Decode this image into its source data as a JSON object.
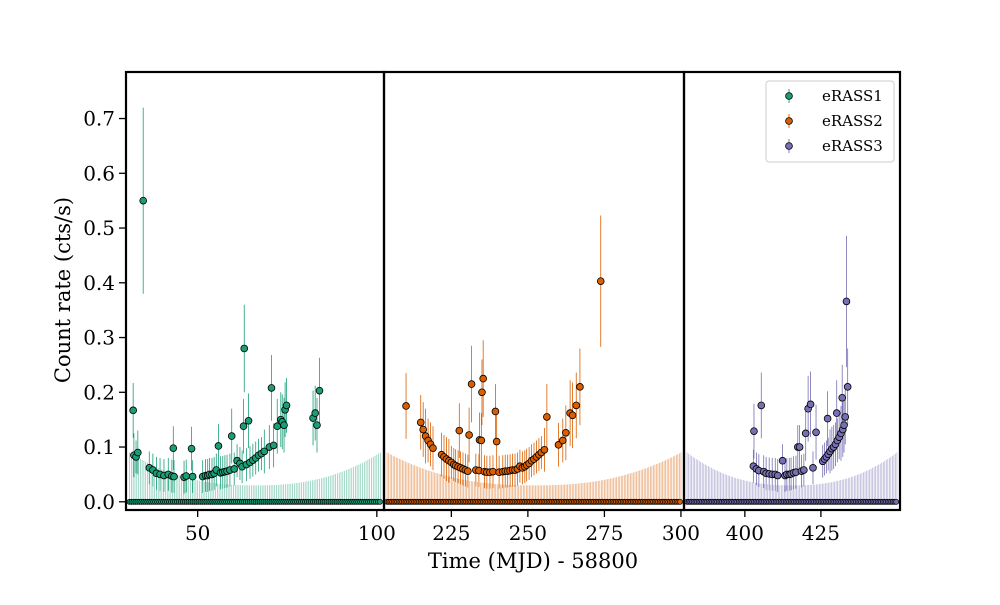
{
  "chart_data": {
    "type": "scatter",
    "title": "",
    "xlabel": "Time (MJD) - 58800",
    "ylabel": "Count rate (cts/s)",
    "ylim": [
      -0.015,
      0.785
    ],
    "yticks": [
      0.0,
      0.1,
      0.2,
      0.3,
      0.4,
      0.5,
      0.6,
      0.7
    ],
    "ytick_labels": [
      "0.0",
      "0.1",
      "0.2",
      "0.3",
      "0.4",
      "0.5",
      "0.6",
      "0.7"
    ],
    "legend_position": "top-right",
    "panels": [
      {
        "name": "eRASS1",
        "xlim": [
          30,
          102
        ],
        "xticks": [
          50,
          100
        ],
        "xtick_labels": [
          "50",
          "100"
        ],
        "t_start": 31,
        "t_end": 101
      },
      {
        "name": "eRASS2",
        "xlim": [
          203,
          301
        ],
        "xticks": [
          225,
          250,
          275,
          300
        ],
        "xtick_labels": [
          "225",
          "250",
          "275",
          "300"
        ],
        "t_start": 204,
        "t_end": 300
      },
      {
        "name": "eRASS3",
        "xlim": [
          380,
          451
        ],
        "xticks": [
          400,
          425
        ],
        "xtick_labels": [
          "400",
          "425"
        ],
        "t_start": 381,
        "t_end": 450
      }
    ],
    "series": [
      {
        "name": "eRASS1",
        "color": "#1b9e77",
        "points": [
          [
            32.0,
            0.167,
            0.05
          ],
          [
            32.2,
            0.085,
            0.04
          ],
          [
            32.8,
            0.082,
            0.03
          ],
          [
            33.3,
            0.09,
            0.04
          ],
          [
            34.8,
            0.55,
            0.17
          ],
          [
            36.5,
            0.062,
            0.03
          ],
          [
            37.5,
            0.058,
            0.03
          ],
          [
            38.5,
            0.052,
            0.03
          ],
          [
            39.5,
            0.05,
            0.03
          ],
          [
            40.6,
            0.048,
            0.03
          ],
          [
            41.8,
            0.05,
            0.03
          ],
          [
            42.8,
            0.047,
            0.03
          ],
          [
            43.4,
            0.046,
            0.03
          ],
          [
            43.2,
            0.098,
            0.04
          ],
          [
            46.2,
            0.045,
            0.03
          ],
          [
            46.8,
            0.047,
            0.03
          ],
          [
            48.3,
            0.097,
            0.04
          ],
          [
            48.6,
            0.046,
            0.03
          ],
          [
            51.4,
            0.046,
            0.03
          ],
          [
            52.2,
            0.048,
            0.03
          ],
          [
            52.8,
            0.048,
            0.03
          ],
          [
            53.3,
            0.05,
            0.03
          ],
          [
            54.0,
            0.05,
            0.03
          ],
          [
            54.6,
            0.052,
            0.03
          ],
          [
            55.2,
            0.058,
            0.03
          ],
          [
            55.8,
            0.102,
            0.04
          ],
          [
            56.4,
            0.053,
            0.03
          ],
          [
            57.0,
            0.054,
            0.03
          ],
          [
            57.6,
            0.055,
            0.03
          ],
          [
            58.2,
            0.056,
            0.03
          ],
          [
            59.0,
            0.058,
            0.03
          ],
          [
            59.5,
            0.12,
            0.05
          ],
          [
            60.2,
            0.06,
            0.03
          ],
          [
            61.0,
            0.075,
            0.03
          ],
          [
            61.8,
            0.07,
            0.03
          ],
          [
            62.4,
            0.064,
            0.03
          ],
          [
            62.8,
            0.138,
            0.05
          ],
          [
            63.0,
            0.28,
            0.08
          ],
          [
            63.6,
            0.068,
            0.03
          ],
          [
            64.2,
            0.148,
            0.05
          ],
          [
            64.6,
            0.072,
            0.03
          ],
          [
            65.4,
            0.076,
            0.03
          ],
          [
            66.2,
            0.08,
            0.03
          ],
          [
            67.0,
            0.085,
            0.03
          ],
          [
            67.8,
            0.088,
            0.03
          ],
          [
            68.6,
            0.092,
            0.04
          ],
          [
            70.0,
            0.1,
            0.04
          ],
          [
            70.6,
            0.208,
            0.06
          ],
          [
            71.2,
            0.103,
            0.04
          ],
          [
            72.2,
            0.138,
            0.05
          ],
          [
            73.2,
            0.15,
            0.05
          ],
          [
            73.6,
            0.146,
            0.05
          ],
          [
            74.4,
            0.168,
            0.05
          ],
          [
            74.8,
            0.176,
            0.05
          ],
          [
            74.1,
            0.14,
            0.05
          ],
          [
            82.2,
            0.153,
            0.05
          ],
          [
            82.8,
            0.162,
            0.05
          ],
          [
            83.3,
            0.14,
            0.05
          ],
          [
            84.0,
            0.203,
            0.06
          ]
        ]
      },
      {
        "name": "eRASS2",
        "color": "#d95f02",
        "points": [
          [
            210.2,
            0.175,
            0.06
          ],
          [
            215.0,
            0.145,
            0.05
          ],
          [
            215.8,
            0.132,
            0.05
          ],
          [
            216.6,
            0.12,
            0.05
          ],
          [
            217.4,
            0.112,
            0.04
          ],
          [
            218.2,
            0.105,
            0.04
          ],
          [
            219.0,
            0.098,
            0.04
          ],
          [
            221.8,
            0.086,
            0.04
          ],
          [
            222.6,
            0.082,
            0.04
          ],
          [
            223.4,
            0.078,
            0.04
          ],
          [
            224.2,
            0.075,
            0.04
          ],
          [
            225.0,
            0.072,
            0.03
          ],
          [
            225.8,
            0.068,
            0.03
          ],
          [
            226.4,
            0.066,
            0.03
          ],
          [
            227.2,
            0.064,
            0.03
          ],
          [
            227.6,
            0.13,
            0.05
          ],
          [
            228.0,
            0.062,
            0.03
          ],
          [
            228.8,
            0.06,
            0.03
          ],
          [
            229.6,
            0.058,
            0.03
          ],
          [
            230.4,
            0.056,
            0.03
          ],
          [
            230.8,
            0.122,
            0.05
          ],
          [
            231.6,
            0.215,
            0.07
          ],
          [
            233.0,
            0.058,
            0.03
          ],
          [
            234.0,
            0.057,
            0.03
          ],
          [
            234.2,
            0.113,
            0.05
          ],
          [
            234.8,
            0.112,
            0.05
          ],
          [
            235.0,
            0.2,
            0.06
          ],
          [
            235.4,
            0.225,
            0.07
          ],
          [
            235.8,
            0.055,
            0.03
          ],
          [
            236.6,
            0.054,
            0.03
          ],
          [
            237.6,
            0.054,
            0.03
          ],
          [
            238.6,
            0.055,
            0.03
          ],
          [
            239.4,
            0.165,
            0.05
          ],
          [
            239.8,
            0.11,
            0.05
          ],
          [
            240.6,
            0.054,
            0.03
          ],
          [
            241.8,
            0.055,
            0.03
          ],
          [
            242.6,
            0.056,
            0.03
          ],
          [
            243.4,
            0.056,
            0.03
          ],
          [
            244.2,
            0.057,
            0.03
          ],
          [
            245.0,
            0.058,
            0.03
          ],
          [
            245.8,
            0.058,
            0.03
          ],
          [
            246.6,
            0.06,
            0.03
          ],
          [
            247.4,
            0.065,
            0.03
          ],
          [
            248.2,
            0.062,
            0.03
          ],
          [
            249.0,
            0.064,
            0.03
          ],
          [
            249.6,
            0.067,
            0.03
          ],
          [
            250.4,
            0.07,
            0.03
          ],
          [
            251.2,
            0.075,
            0.03
          ],
          [
            252.0,
            0.078,
            0.03
          ],
          [
            252.8,
            0.082,
            0.03
          ],
          [
            253.6,
            0.086,
            0.03
          ],
          [
            254.4,
            0.09,
            0.03
          ],
          [
            255.4,
            0.095,
            0.04
          ],
          [
            256.2,
            0.155,
            0.06
          ],
          [
            260.0,
            0.104,
            0.04
          ],
          [
            261.4,
            0.112,
            0.04
          ],
          [
            262.4,
            0.126,
            0.05
          ],
          [
            263.8,
            0.162,
            0.06
          ],
          [
            264.6,
            0.158,
            0.06
          ],
          [
            265.8,
            0.176,
            0.06
          ],
          [
            267.0,
            0.21,
            0.07
          ],
          [
            273.8,
            0.403,
            0.12
          ]
        ]
      },
      {
        "name": "eRASS3",
        "color": "#7570b3",
        "points": [
          [
            402.8,
            0.065,
            0.03
          ],
          [
            403.0,
            0.129,
            0.05
          ],
          [
            403.8,
            0.06,
            0.03
          ],
          [
            404.6,
            0.057,
            0.03
          ],
          [
            405.4,
            0.176,
            0.06
          ],
          [
            406.2,
            0.055,
            0.03
          ],
          [
            407.0,
            0.052,
            0.03
          ],
          [
            408.0,
            0.051,
            0.03
          ],
          [
            409.0,
            0.05,
            0.03
          ],
          [
            410.0,
            0.05,
            0.03
          ],
          [
            410.8,
            0.048,
            0.03
          ],
          [
            412.4,
            0.075,
            0.03
          ],
          [
            413.2,
            0.048,
            0.03
          ],
          [
            413.8,
            0.05,
            0.03
          ],
          [
            414.6,
            0.05,
            0.03
          ],
          [
            415.2,
            0.051,
            0.03
          ],
          [
            416.0,
            0.053,
            0.03
          ],
          [
            416.8,
            0.054,
            0.03
          ],
          [
            417.4,
            0.1,
            0.04
          ],
          [
            418.0,
            0.1,
            0.04
          ],
          [
            418.6,
            0.056,
            0.03
          ],
          [
            419.4,
            0.058,
            0.03
          ],
          [
            420.0,
            0.125,
            0.05
          ],
          [
            420.8,
            0.17,
            0.06
          ],
          [
            421.6,
            0.178,
            0.06
          ],
          [
            422.4,
            0.062,
            0.03
          ],
          [
            423.4,
            0.127,
            0.05
          ],
          [
            425.6,
            0.074,
            0.03
          ],
          [
            426.2,
            0.078,
            0.03
          ],
          [
            426.8,
            0.082,
            0.03
          ],
          [
            427.4,
            0.087,
            0.03
          ],
          [
            428.0,
            0.092,
            0.04
          ],
          [
            428.6,
            0.097,
            0.04
          ],
          [
            429.2,
            0.1,
            0.04
          ],
          [
            429.8,
            0.105,
            0.04
          ],
          [
            430.4,
            0.112,
            0.04
          ],
          [
            431.0,
            0.118,
            0.04
          ],
          [
            431.6,
            0.125,
            0.05
          ],
          [
            432.2,
            0.132,
            0.05
          ],
          [
            432.6,
            0.14,
            0.05
          ],
          [
            433.0,
            0.155,
            0.05
          ],
          [
            433.4,
            0.366,
            0.12
          ],
          [
            433.8,
            0.21,
            0.07
          ],
          [
            432.0,
            0.19,
            0.06
          ],
          [
            430.2,
            0.162,
            0.06
          ],
          [
            427.2,
            0.152,
            0.05
          ]
        ]
      }
    ]
  }
}
